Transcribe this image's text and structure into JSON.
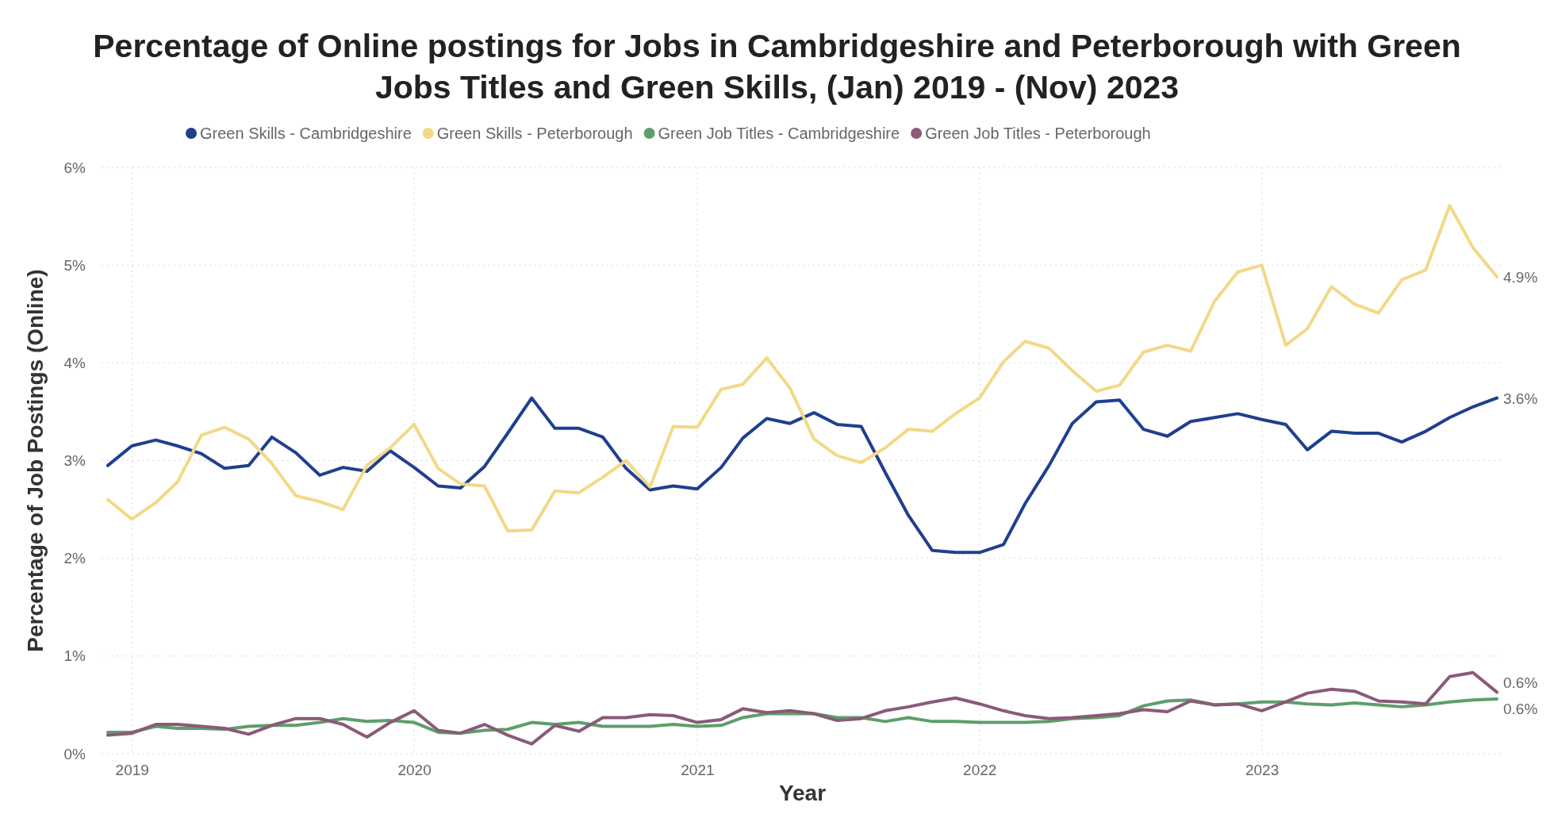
{
  "chart_data": {
    "type": "line",
    "title": "Percentage of Online postings for Jobs in Cambridgeshire and Peterborough with Green Jobs Titles and Green Skills, (Jan) 2019 - (Nov) 2023",
    "xlabel": "Year",
    "ylabel": "Percentage of Job Postings (Online)",
    "x": [
      "2018-12",
      "2019-01",
      "2019-02",
      "2019-03",
      "2019-04",
      "2019-05",
      "2019-06",
      "2019-07",
      "2019-08",
      "2019-09",
      "2019-10",
      "2019-11",
      "2019-12",
      "2020-01",
      "2020-02",
      "2020-03",
      "2020-04",
      "2020-05",
      "2020-06",
      "2020-07",
      "2020-08",
      "2020-09",
      "2020-10",
      "2020-11",
      "2020-12",
      "2021-01",
      "2021-02",
      "2021-03",
      "2021-04",
      "2021-05",
      "2021-06",
      "2021-07",
      "2021-08",
      "2021-09",
      "2021-10",
      "2021-11",
      "2021-12",
      "2022-01",
      "2022-02",
      "2022-03",
      "2022-04",
      "2022-05",
      "2022-06",
      "2022-07",
      "2022-08",
      "2022-09",
      "2022-10",
      "2022-11",
      "2022-12",
      "2023-01",
      "2023-02",
      "2023-03",
      "2023-04",
      "2023-05",
      "2023-06",
      "2023-07",
      "2023-08",
      "2023-09",
      "2023-10",
      "2023-11"
    ],
    "series": [
      {
        "name": "Green Skills - Cambridgeshire",
        "color": "#1f3f8f",
        "values": [
          2.95,
          3.15,
          3.21,
          3.15,
          3.07,
          2.92,
          2.95,
          3.24,
          3.08,
          2.85,
          2.93,
          2.89,
          3.1,
          2.93,
          2.74,
          2.72,
          2.94,
          3.28,
          3.64,
          3.33,
          3.33,
          3.24,
          2.92,
          2.7,
          2.74,
          2.71,
          2.93,
          3.23,
          3.43,
          3.38,
          3.49,
          3.37,
          3.35,
          2.88,
          2.44,
          2.08,
          2.06,
          2.06,
          2.14,
          2.56,
          2.95,
          3.38,
          3.6,
          3.62,
          3.32,
          3.25,
          3.4,
          3.44,
          3.48,
          3.42,
          3.37,
          3.11,
          3.3,
          3.28,
          3.28,
          3.19,
          3.3,
          3.44,
          3.55,
          3.64
        ],
        "value_labels": [
          null,
          null,
          null,
          null,
          null,
          null,
          null,
          null,
          null,
          null,
          null,
          null,
          null,
          null,
          null,
          null,
          null,
          null,
          null,
          null,
          null,
          null,
          null,
          null,
          null,
          null,
          null,
          null,
          null,
          null,
          null,
          null,
          null,
          null,
          null,
          null,
          null,
          null,
          null,
          null,
          null,
          null,
          null,
          null,
          null,
          null,
          null,
          null,
          null,
          null,
          null,
          null,
          null,
          null,
          null,
          null,
          null,
          null,
          null,
          "3.6%"
        ]
      },
      {
        "name": "Green Skills - Peterborough",
        "color": "#f2d987",
        "values": [
          2.6,
          2.4,
          2.57,
          2.78,
          3.26,
          3.34,
          3.22,
          2.97,
          2.64,
          2.58,
          2.5,
          2.95,
          3.13,
          3.37,
          2.92,
          2.76,
          2.74,
          2.28,
          2.29,
          2.69,
          2.67,
          2.83,
          3.0,
          2.73,
          3.35,
          3.34,
          3.73,
          3.78,
          4.05,
          3.74,
          3.22,
          3.05,
          2.98,
          3.13,
          3.32,
          3.3,
          3.48,
          3.64,
          4.01,
          4.22,
          4.15,
          3.92,
          3.71,
          3.77,
          4.11,
          4.18,
          4.12,
          4.63,
          4.93,
          5.0,
          4.18,
          4.35,
          4.78,
          4.6,
          4.51,
          4.85,
          4.95,
          5.61,
          5.18,
          4.88
        ],
        "value_labels": [
          null,
          null,
          null,
          null,
          null,
          null,
          null,
          null,
          null,
          null,
          null,
          null,
          null,
          null,
          null,
          null,
          null,
          null,
          null,
          null,
          null,
          null,
          null,
          null,
          null,
          null,
          null,
          null,
          null,
          null,
          null,
          null,
          null,
          null,
          null,
          null,
          null,
          null,
          null,
          null,
          null,
          null,
          null,
          null,
          null,
          null,
          null,
          null,
          null,
          null,
          null,
          null,
          null,
          null,
          null,
          null,
          null,
          null,
          null,
          "4.9%"
        ]
      },
      {
        "name": "Green Job Titles - Cambridgeshire",
        "color": "#5e9e6a",
        "values": [
          0.22,
          0.22,
          0.28,
          0.26,
          0.26,
          0.25,
          0.28,
          0.29,
          0.29,
          0.32,
          0.36,
          0.33,
          0.34,
          0.32,
          0.22,
          0.21,
          0.24,
          0.25,
          0.32,
          0.3,
          0.32,
          0.28,
          0.28,
          0.28,
          0.3,
          0.28,
          0.29,
          0.37,
          0.41,
          0.41,
          0.41,
          0.37,
          0.37,
          0.33,
          0.37,
          0.33,
          0.33,
          0.32,
          0.32,
          0.32,
          0.33,
          0.36,
          0.37,
          0.39,
          0.49,
          0.54,
          0.55,
          0.5,
          0.51,
          0.53,
          0.53,
          0.51,
          0.5,
          0.52,
          0.5,
          0.48,
          0.5,
          0.53,
          0.55,
          0.56
        ],
        "value_labels": [
          null,
          null,
          null,
          null,
          null,
          null,
          null,
          null,
          null,
          null,
          null,
          null,
          null,
          null,
          null,
          null,
          null,
          null,
          null,
          null,
          null,
          null,
          null,
          null,
          null,
          null,
          null,
          null,
          null,
          null,
          null,
          null,
          null,
          null,
          null,
          null,
          null,
          null,
          null,
          null,
          null,
          null,
          null,
          null,
          null,
          null,
          null,
          null,
          null,
          null,
          null,
          null,
          null,
          null,
          null,
          null,
          null,
          null,
          null,
          "0.6%"
        ]
      },
      {
        "name": "Green Job Titles - Peterborough",
        "color": "#8a5a78",
        "values": [
          0.19,
          0.21,
          0.3,
          0.3,
          0.28,
          0.26,
          0.2,
          0.29,
          0.36,
          0.36,
          0.3,
          0.17,
          0.32,
          0.44,
          0.24,
          0.21,
          0.3,
          0.19,
          0.1,
          0.29,
          0.23,
          0.37,
          0.37,
          0.4,
          0.39,
          0.32,
          0.35,
          0.46,
          0.42,
          0.44,
          0.41,
          0.34,
          0.36,
          0.44,
          0.48,
          0.53,
          0.57,
          0.51,
          0.44,
          0.39,
          0.36,
          0.37,
          0.39,
          0.41,
          0.45,
          0.43,
          0.54,
          0.5,
          0.51,
          0.44,
          0.53,
          0.62,
          0.66,
          0.64,
          0.54,
          0.53,
          0.51,
          0.79,
          0.83,
          0.63
        ],
        "value_labels": [
          null,
          null,
          null,
          null,
          null,
          null,
          null,
          null,
          null,
          null,
          null,
          null,
          null,
          null,
          null,
          null,
          null,
          null,
          null,
          null,
          null,
          null,
          null,
          null,
          null,
          null,
          null,
          null,
          null,
          null,
          null,
          null,
          null,
          null,
          null,
          null,
          null,
          null,
          null,
          null,
          null,
          null,
          null,
          null,
          null,
          null,
          null,
          null,
          null,
          null,
          null,
          null,
          null,
          null,
          null,
          null,
          null,
          null,
          null,
          "0.6%"
        ]
      }
    ],
    "xlim": [
      "2018-12",
      "2023-11"
    ],
    "xticks": [
      {
        "value": "2019-01",
        "label": "2019"
      },
      {
        "value": "2020-01",
        "label": "2020"
      },
      {
        "value": "2021-01",
        "label": "2021"
      },
      {
        "value": "2022-01",
        "label": "2022"
      },
      {
        "value": "2023-01",
        "label": "2023"
      }
    ],
    "ylim": [
      0,
      6
    ],
    "yticks": [
      {
        "value": 0,
        "label": "0%"
      },
      {
        "value": 1,
        "label": "1%"
      },
      {
        "value": 2,
        "label": "2%"
      },
      {
        "value": 3,
        "label": "3%"
      },
      {
        "value": 4,
        "label": "4%"
      },
      {
        "value": 5,
        "label": "5%"
      },
      {
        "value": 6,
        "label": "6%"
      }
    ],
    "grid": true,
    "legend": "top left",
    "marker": "none",
    "line_style": "solid"
  }
}
